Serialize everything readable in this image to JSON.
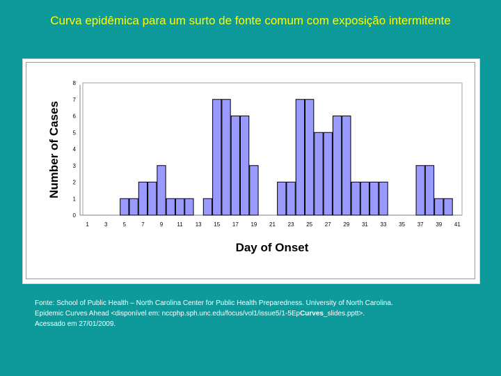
{
  "slide": {
    "title": "Curva epidêmica para um surto de fonte comum com exposição intermitente"
  },
  "source": {
    "line1": "Fonte: School of Public Health – North Carolina Center for Public Health Preparedness. University of North Carolina.",
    "line2_prefix": "Epidemic Curves Ahead <disponível em: nccphp.sph.unc.edu/focus/vol1/issue5/1-5Ep",
    "line2_bold": "Curves",
    "line2_suffix": "_slides.pptt>.",
    "line3": "Acessado em 27/01/2009."
  },
  "colors": {
    "background": "#0e9a9a",
    "title": "#ffff00",
    "bar_fill": "#9999ff",
    "bar_stroke": "#000000",
    "plot_bg": "#ffffff"
  },
  "chart_data": {
    "type": "bar",
    "xlabel": "Day of Onset",
    "ylabel": "Number of Cases",
    "ylim": [
      0,
      8
    ],
    "yticks": [
      "0",
      "1",
      "2",
      "3",
      "4",
      "5",
      "6",
      "7",
      "8"
    ],
    "categories": [
      1,
      2,
      3,
      4,
      5,
      6,
      7,
      8,
      9,
      10,
      11,
      12,
      13,
      14,
      15,
      16,
      17,
      18,
      19,
      20,
      21,
      22,
      23,
      24,
      25,
      26,
      27,
      28,
      29,
      30,
      31,
      32,
      33,
      34,
      35,
      36,
      37,
      38,
      39,
      40,
      41
    ],
    "xtick_labels": [
      "1",
      "3",
      "5",
      "7",
      "9",
      "11",
      "13",
      "15",
      "17",
      "19",
      "21",
      "23",
      "25",
      "27",
      "29",
      "31",
      "33",
      "35",
      "37",
      "39",
      "41"
    ],
    "values": [
      0,
      0,
      0,
      0,
      1,
      1,
      2,
      2,
      3,
      1,
      1,
      1,
      0,
      1,
      7,
      7,
      6,
      6,
      3,
      0,
      0,
      2,
      2,
      7,
      7,
      5,
      5,
      6,
      6,
      2,
      2,
      2,
      2,
      0,
      0,
      0,
      3,
      3,
      1,
      1,
      0
    ],
    "grid": false,
    "legend": "none"
  }
}
